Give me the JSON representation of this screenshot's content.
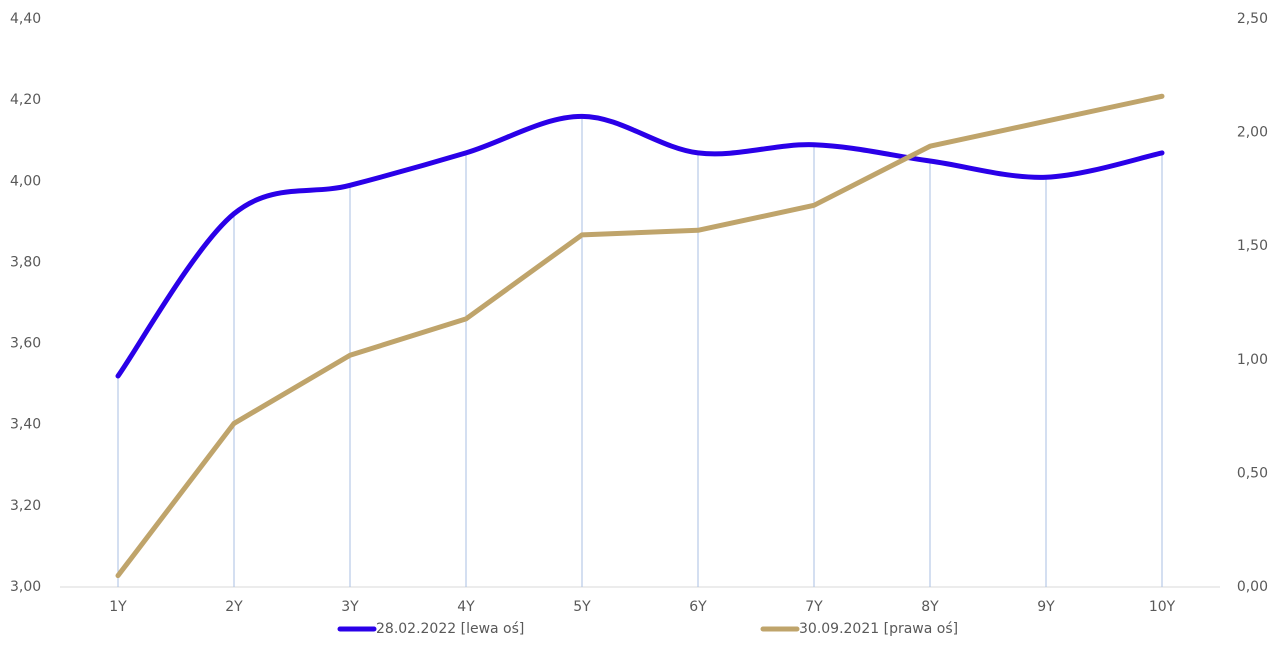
{
  "chart_data": {
    "type": "line",
    "categories": [
      "1Y",
      "2Y",
      "3Y",
      "4Y",
      "5Y",
      "6Y",
      "7Y",
      "8Y",
      "9Y",
      "10Y"
    ],
    "series": [
      {
        "name": "28.02.2022 [lewa oś]",
        "color": "#2a00e8",
        "smooth": true,
        "axis": "y",
        "values": [
          3.52,
          3.92,
          3.99,
          4.07,
          4.16,
          4.07,
          4.09,
          4.05,
          4.01,
          4.07
        ]
      },
      {
        "name": "30.09.2021 [prawa oś]",
        "color": "#bfa46b",
        "smooth": false,
        "axis": "y2",
        "values": [
          0.05,
          0.72,
          1.02,
          1.18,
          1.55,
          1.57,
          1.68,
          1.94,
          2.05,
          2.16
        ]
      }
    ],
    "ylim": [
      3.0,
      4.4
    ],
    "yticks": [
      {
        "value": 3.0,
        "label": "3,00"
      },
      {
        "value": 3.2,
        "label": "3,20"
      },
      {
        "value": 3.4,
        "label": "3,40"
      },
      {
        "value": 3.6,
        "label": "3,60"
      },
      {
        "value": 3.8,
        "label": "3,80"
      },
      {
        "value": 4.0,
        "label": "4,00"
      },
      {
        "value": 4.2,
        "label": "4,20"
      },
      {
        "value": 4.4,
        "label": "4,40"
      }
    ],
    "y2lim": [
      0,
      2.5
    ],
    "y2ticks": [
      {
        "value": 0,
        "label": "0,00"
      },
      {
        "value": 0.5,
        "label": "0,50"
      },
      {
        "value": 1.0,
        "label": "1,00"
      },
      {
        "value": 1.5,
        "label": "1,50"
      },
      {
        "value": 2.0,
        "label": "2,00"
      },
      {
        "value": 2.5,
        "label": "2,50"
      }
    ],
    "drop_lines": true,
    "drop_line_color": "#a9bfe3",
    "legend": "bottom"
  }
}
